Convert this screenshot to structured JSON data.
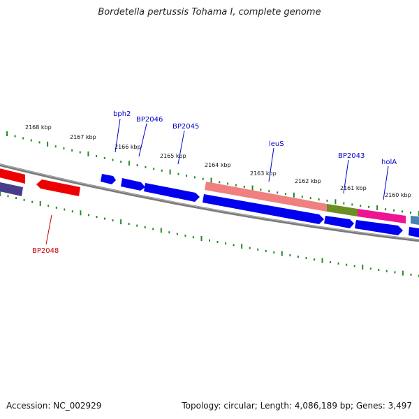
{
  "title": "Bordetella pertussis Tohama I, complete genome",
  "footer": {
    "accession": "Accession: NC_002929",
    "summary": "Topology: circular; Length: 4,086,189 bp; Genes: 3,497"
  },
  "scale_labels": [
    "2168 kbp",
    "2167 kbp",
    "2166 kbp",
    "2165 kbp",
    "2164 kbp",
    "2163 kbp",
    "2162 kbp",
    "2161 kbp",
    "2160 kbp"
  ],
  "gene_labels": {
    "bph2": "bph2",
    "BP2046": "BP2046",
    "BP2045": "BP2045",
    "leuS": "leuS",
    "BP2043": "BP2043",
    "holA": "holA",
    "BP2048": "BP2048"
  },
  "colors": {
    "forward_gene": "#0000ee",
    "reverse_gene": "#ee0000",
    "rrna_like": "#f08080",
    "olive": "#6b8e23",
    "magenta": "#ee1493",
    "navy": "#483d8b",
    "steel": "#4682b4",
    "backbone": "#808080",
    "tick": "#228b22",
    "label_blue": "#0000cc",
    "label_red": "#cc0000"
  }
}
